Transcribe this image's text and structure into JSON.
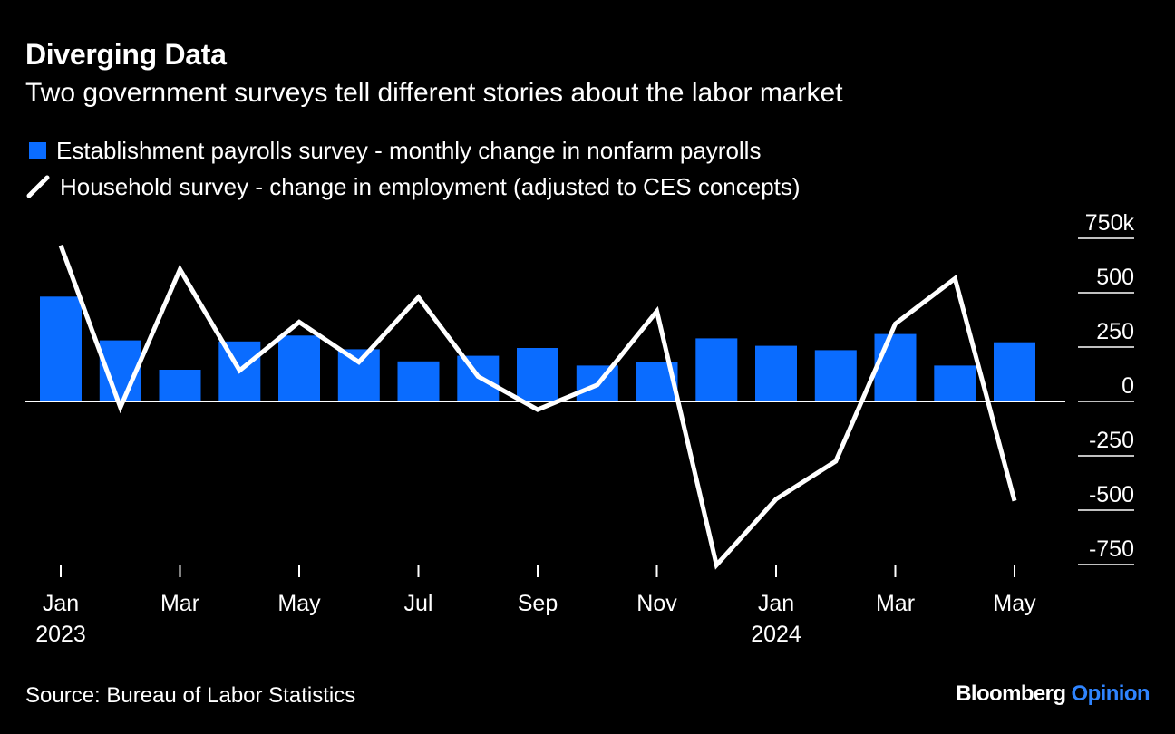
{
  "header": {
    "title": "Diverging Data",
    "subtitle": "Two government surveys tell different stories about the labor market"
  },
  "legend": {
    "bar_label": "Establishment payrolls survey - monthly change in nonfarm payrolls",
    "line_label": "Household survey - change in employment (adjusted to CES concepts)"
  },
  "footer": {
    "source": "Source: Bureau of Labor Statistics",
    "brand_main": "Bloomberg",
    "brand_accent": "Opinion"
  },
  "colors": {
    "background": "#000000",
    "bar": "#0a6cff",
    "line": "#ffffff",
    "axis_rule": "#ffffff",
    "brand_accent": "#2f84ff"
  },
  "chart_data": {
    "type": "bar",
    "title": "Diverging Data",
    "subtitle": "Two government surveys tell different stories about the labor market",
    "x": [
      "2023-01",
      "2023-02",
      "2023-03",
      "2023-04",
      "2023-05",
      "2023-06",
      "2023-07",
      "2023-08",
      "2023-09",
      "2023-10",
      "2023-11",
      "2023-12",
      "2024-01",
      "2024-02",
      "2024-03",
      "2024-04",
      "2024-05"
    ],
    "series": [
      {
        "name": "Establishment payrolls survey - monthly change in nonfarm payrolls",
        "type": "bar",
        "values": [
          482,
          281,
          146,
          276,
          303,
          240,
          184,
          210,
          246,
          165,
          182,
          290,
          256,
          236,
          310,
          165,
          272
        ]
      },
      {
        "name": "Household survey - change in employment (adjusted to CES concepts)",
        "type": "line",
        "values": [
          718,
          -27,
          607,
          142,
          365,
          181,
          479,
          115,
          -38,
          76,
          415,
          -752,
          -449,
          -275,
          357,
          565,
          -457
        ]
      }
    ],
    "x_ticks": [
      {
        "x": "2023-01",
        "label": "Jan",
        "year": "2023"
      },
      {
        "x": "2023-03",
        "label": "Mar",
        "year": ""
      },
      {
        "x": "2023-05",
        "label": "May",
        "year": ""
      },
      {
        "x": "2023-07",
        "label": "Jul",
        "year": ""
      },
      {
        "x": "2023-09",
        "label": "Sep",
        "year": ""
      },
      {
        "x": "2023-11",
        "label": "Nov",
        "year": ""
      },
      {
        "x": "2024-01",
        "label": "Jan",
        "year": "2024"
      },
      {
        "x": "2024-03",
        "label": "Mar",
        "year": ""
      },
      {
        "x": "2024-05",
        "label": "May",
        "year": ""
      }
    ],
    "y_ticks": [
      {
        "value": 750,
        "label": "750k"
      },
      {
        "value": 500,
        "label": "500"
      },
      {
        "value": 250,
        "label": "250"
      },
      {
        "value": 0,
        "label": "0"
      },
      {
        "value": -250,
        "label": "-250"
      },
      {
        "value": -500,
        "label": "-500"
      },
      {
        "value": -750,
        "label": "-750"
      }
    ],
    "ylim": [
      -750,
      750
    ],
    "y_axis_position": "right",
    "grid": false,
    "legend_position": "top-left"
  }
}
